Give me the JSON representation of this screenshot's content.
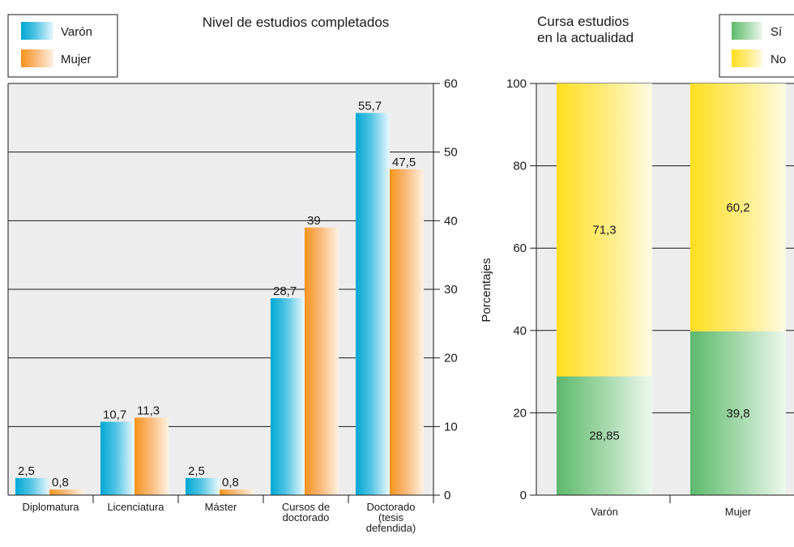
{
  "chart_data": [
    {
      "type": "bar",
      "title": "Nivel de estudios completados",
      "categories": [
        [
          "Diplomatura"
        ],
        [
          "Licenciatura"
        ],
        [
          "Máster"
        ],
        [
          "Cursos de",
          "doctorado"
        ],
        [
          "Doctorado",
          "(tesis",
          "defendida)"
        ]
      ],
      "series": [
        {
          "name": "Varón",
          "values": [
            2.5,
            10.7,
            2.5,
            28.7,
            55.7
          ],
          "labels": [
            "2,5",
            "10,7",
            "2,5",
            "28,7",
            "55,7"
          ]
        },
        {
          "name": "Mujer",
          "values": [
            0.8,
            11.3,
            0.8,
            39,
            47.5
          ],
          "labels": [
            "0,8",
            "11,3",
            "0,8",
            "39",
            "47,5"
          ]
        }
      ],
      "ylim": [
        0,
        60
      ],
      "yticks": [
        0,
        10,
        20,
        30,
        40,
        50,
        60
      ],
      "y_axis_side": "right",
      "grid": true,
      "legend_position": "top-left",
      "colors": {
        "Varón": "#1ab0d8",
        "Mujer": "#f7a14a",
        "plot_bg": "#ededed"
      }
    },
    {
      "type": "bar",
      "stacked": true,
      "title": [
        "Cursa estudios",
        "en la actualidad"
      ],
      "ylabel": "Porcentajes",
      "categories": [
        "Varón",
        "Mujer"
      ],
      "series": [
        {
          "name": "Sí",
          "values": [
            28.85,
            39.8
          ],
          "labels": [
            "28,85",
            "39,8"
          ]
        },
        {
          "name": "No",
          "values": [
            71.3,
            60.2
          ],
          "labels": [
            "71,3",
            "60,2"
          ]
        }
      ],
      "ylim": [
        0,
        100
      ],
      "yticks": [
        0,
        20,
        40,
        60,
        80,
        100
      ],
      "y_axis_side": "left",
      "grid": true,
      "legend_position": "top-right",
      "colors": {
        "Sí": "#6cc27a",
        "No": "#ffe135",
        "plot_bg": "#ededed"
      }
    }
  ]
}
